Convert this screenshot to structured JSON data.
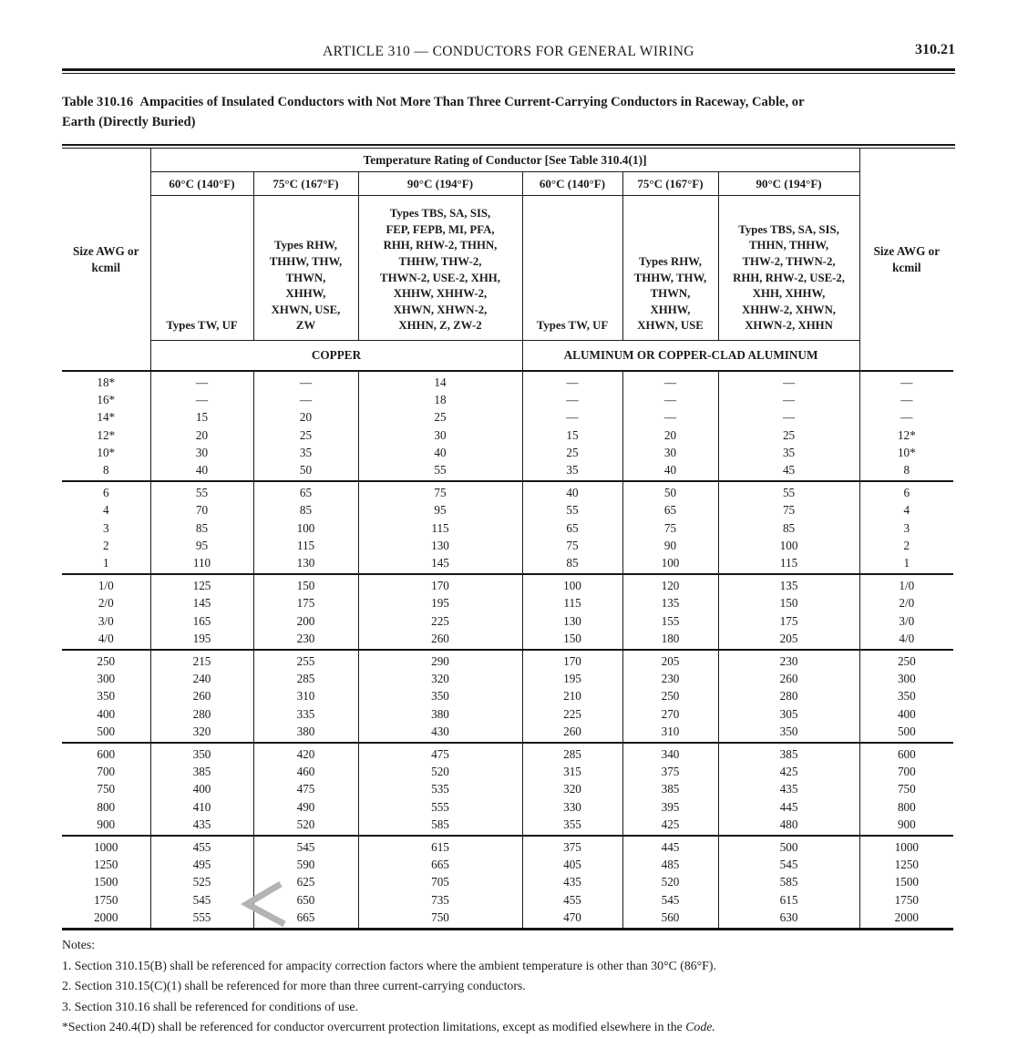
{
  "page": {
    "running_head": "ARTICLE 310 — CONDUCTORS FOR GENERAL WIRING",
    "page_number": "310.21",
    "title_line1": "Table 310.16 Ampacities of Insulated Conductors with Not More Than Three Current-Carrying Conductors in Raceway, Cable, or",
    "title_line2": "Earth (Directly Buried)"
  },
  "table": {
    "size_header": "Size AWG or\nkcmil",
    "temp_span_header": "Temperature Rating of Conductor [See Table 310.4(1)]",
    "temp_headers": [
      "60°C (140°F)",
      "75°C (167°F)",
      "90°C (194°F)",
      "60°C (140°F)",
      "75°C (167°F)",
      "90°C (194°F)"
    ],
    "type_headers": [
      "Types TW, UF",
      "Types RHW,\nTHHW, THW,\nTHWN,\nXHHW,\nXHWN, USE,\nZW",
      "Types TBS, SA, SIS,\nFEP, FEPB, MI, PFA,\nRHH, RHW-2, THHN,\nTHHW, THW-2,\nTHWN-2, USE-2, XHH,\nXHHW, XHHW-2,\nXHWN, XHWN-2,\nXHHN, Z, ZW-2",
      "Types TW, UF",
      "Types RHW,\nTHHW, THW,\nTHWN,\nXHHW,\nXHWN, USE",
      "Types TBS, SA, SIS,\nTHHN, THHW,\nTHW-2, THWN-2,\nRHH, RHW-2, USE-2,\nXHH, XHHW,\nXHHW-2, XHWN,\nXHWN-2, XHHN"
    ],
    "material_headers": [
      "COPPER",
      "ALUMINUM OR COPPER-CLAD ALUMINUM"
    ],
    "row_groups": [
      [
        [
          "18*",
          "—",
          "—",
          "14",
          "—",
          "—",
          "—",
          "—"
        ],
        [
          "16*",
          "—",
          "—",
          "18",
          "—",
          "—",
          "—",
          "—"
        ],
        [
          "14*",
          "15",
          "20",
          "25",
          "—",
          "—",
          "—",
          "—"
        ],
        [
          "12*",
          "20",
          "25",
          "30",
          "15",
          "20",
          "25",
          "12*"
        ],
        [
          "10*",
          "30",
          "35",
          "40",
          "25",
          "30",
          "35",
          "10*"
        ],
        [
          "8",
          "40",
          "50",
          "55",
          "35",
          "40",
          "45",
          "8"
        ]
      ],
      [
        [
          "6",
          "55",
          "65",
          "75",
          "40",
          "50",
          "55",
          "6"
        ],
        [
          "4",
          "70",
          "85",
          "95",
          "55",
          "65",
          "75",
          "4"
        ],
        [
          "3",
          "85",
          "100",
          "115",
          "65",
          "75",
          "85",
          "3"
        ],
        [
          "2",
          "95",
          "115",
          "130",
          "75",
          "90",
          "100",
          "2"
        ],
        [
          "1",
          "110",
          "130",
          "145",
          "85",
          "100",
          "115",
          "1"
        ]
      ],
      [
        [
          "1/0",
          "125",
          "150",
          "170",
          "100",
          "120",
          "135",
          "1/0"
        ],
        [
          "2/0",
          "145",
          "175",
          "195",
          "115",
          "135",
          "150",
          "2/0"
        ],
        [
          "3/0",
          "165",
          "200",
          "225",
          "130",
          "155",
          "175",
          "3/0"
        ],
        [
          "4/0",
          "195",
          "230",
          "260",
          "150",
          "180",
          "205",
          "4/0"
        ]
      ],
      [
        [
          "250",
          "215",
          "255",
          "290",
          "170",
          "205",
          "230",
          "250"
        ],
        [
          "300",
          "240",
          "285",
          "320",
          "195",
          "230",
          "260",
          "300"
        ],
        [
          "350",
          "260",
          "310",
          "350",
          "210",
          "250",
          "280",
          "350"
        ],
        [
          "400",
          "280",
          "335",
          "380",
          "225",
          "270",
          "305",
          "400"
        ],
        [
          "500",
          "320",
          "380",
          "430",
          "260",
          "310",
          "350",
          "500"
        ]
      ],
      [
        [
          "600",
          "350",
          "420",
          "475",
          "285",
          "340",
          "385",
          "600"
        ],
        [
          "700",
          "385",
          "460",
          "520",
          "315",
          "375",
          "425",
          "700"
        ],
        [
          "750",
          "400",
          "475",
          "535",
          "320",
          "385",
          "435",
          "750"
        ],
        [
          "800",
          "410",
          "490",
          "555",
          "330",
          "395",
          "445",
          "800"
        ],
        [
          "900",
          "435",
          "520",
          "585",
          "355",
          "425",
          "480",
          "900"
        ]
      ],
      [
        [
          "1000",
          "455",
          "545",
          "615",
          "375",
          "445",
          "500",
          "1000"
        ],
        [
          "1250",
          "495",
          "590",
          "665",
          "405",
          "485",
          "545",
          "1250"
        ],
        [
          "1500",
          "525",
          "625",
          "705",
          "435",
          "520",
          "585",
          "1500"
        ],
        [
          "1750",
          "545",
          "650",
          "735",
          "455",
          "545",
          "615",
          "1750"
        ],
        [
          "2000",
          "555",
          "665",
          "750",
          "470",
          "560",
          "630",
          "2000"
        ]
      ]
    ]
  },
  "notes": {
    "label": "Notes:",
    "items": [
      "1. Section 310.15(B) shall be referenced for ampacity correction factors where the ambient temperature is other than 30°C (86°F).",
      "2. Section 310.15(C)(1) shall be referenced for more than three current-carrying conductors.",
      "3. Section 310.16 shall be referenced for conditions of use."
    ],
    "footnote_prefix": "*Section 240.4(D) shall be referenced for conductor overcurrent protection limitations, except as modified elsewhere in the ",
    "footnote_italic": "Code."
  }
}
